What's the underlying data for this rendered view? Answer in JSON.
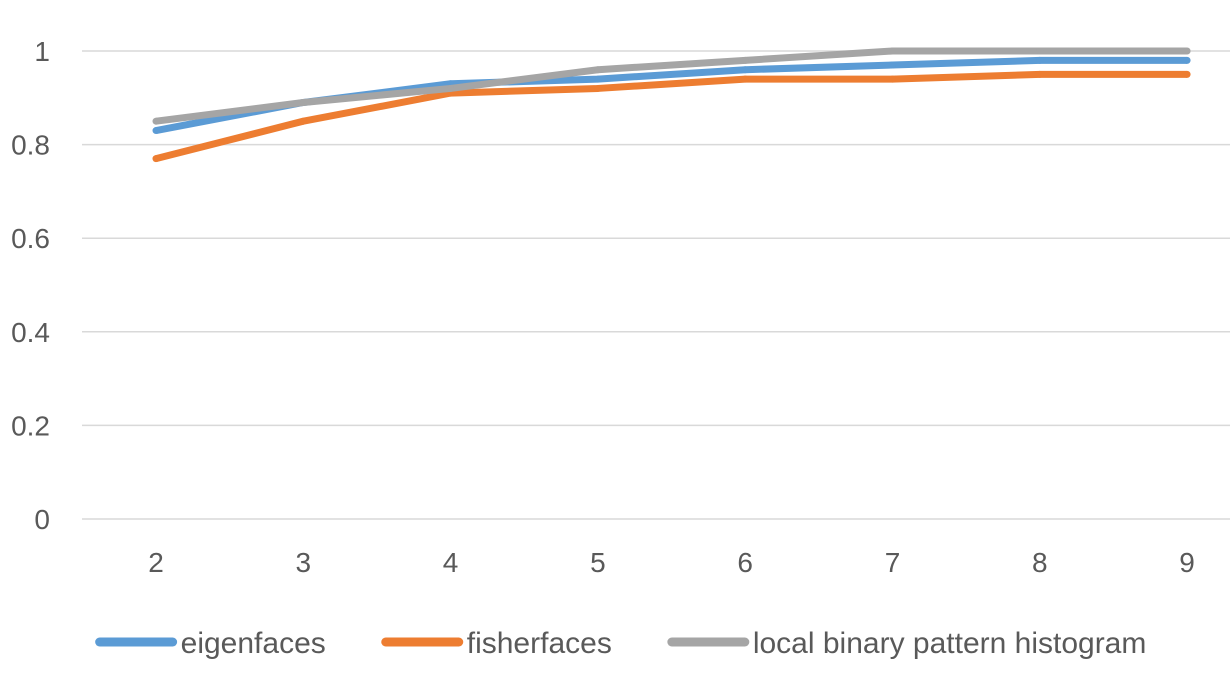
{
  "chart_data": {
    "type": "line",
    "categories": [
      "2",
      "3",
      "4",
      "5",
      "6",
      "7",
      "8",
      "9"
    ],
    "series": [
      {
        "name": "eigenfaces",
        "values": [
          0.83,
          0.89,
          0.93,
          0.94,
          0.96,
          0.97,
          0.98,
          0.98
        ],
        "color": "#5B9BD5"
      },
      {
        "name": "fisherfaces",
        "values": [
          0.77,
          0.85,
          0.91,
          0.92,
          0.94,
          0.94,
          0.95,
          0.95
        ],
        "color": "#ED7D31"
      },
      {
        "name": "local binary pattern histogram",
        "values": [
          0.85,
          0.89,
          0.92,
          0.96,
          0.98,
          1.0,
          1.0,
          1.0
        ],
        "color": "#A5A5A5"
      }
    ],
    "yticks": [
      "0",
      "0.2",
      "0.4",
      "0.6",
      "0.8",
      "1"
    ],
    "ylim": [
      0,
      1
    ],
    "grid": true,
    "legend_position": "bottom",
    "gridline_color": "#D9D9D9",
    "text_color": "#595959"
  }
}
